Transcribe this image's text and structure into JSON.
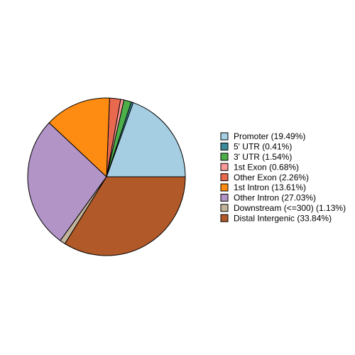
{
  "chart_data": {
    "type": "pie",
    "categories": [
      "Promoter (19.49%)",
      "5' UTR (0.41%)",
      "3' UTR (1.54%)",
      "1st Exon (0.68%)",
      "Other Exon (2.26%)",
      "1st Intron (13.61%)",
      "Other Intron (27.03%)",
      "Downstream (<=300) (1.13%)",
      "Distal Intergenic (33.84%)"
    ],
    "values": [
      19.49,
      0.41,
      1.54,
      0.68,
      2.26,
      13.61,
      27.03,
      1.13,
      33.84
    ],
    "colors": [
      "#A6CEE3",
      "#3D8A9A",
      "#4DAF4A",
      "#FB9A99",
      "#E9694F",
      "#FF8C12",
      "#B294C7",
      "#C2B59B",
      "#B15928"
    ],
    "legend": "right"
  }
}
